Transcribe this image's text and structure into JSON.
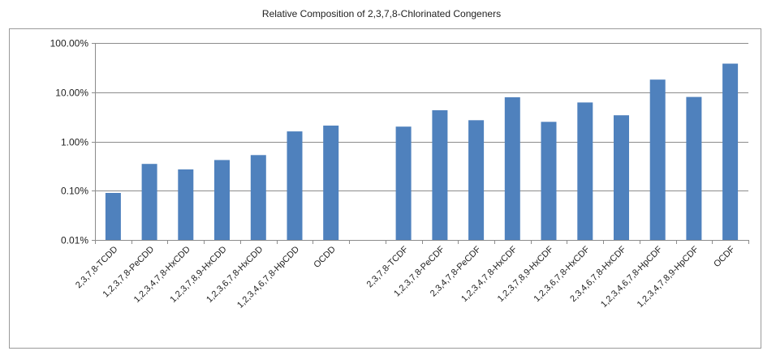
{
  "chart_data": {
    "type": "bar",
    "title": "Relative Composition of 2,3,7,8-Chlorinated Congeners",
    "xlabel": "",
    "ylabel": "",
    "y_scale": "log",
    "ylim": [
      0.01,
      100
    ],
    "y_tick_values": [
      0.01,
      0.1,
      1,
      10,
      100
    ],
    "y_tick_labels": [
      "0.01%",
      "0.10%",
      "1.00%",
      "10.00%",
      "100.00%"
    ],
    "categories": [
      "2,3,7,8-TCDD",
      "1,2,3,7,8-PeCDD",
      "1,2,3,4,7,8-HxCDD",
      "1,2,3,7,8,9-HxCDD",
      "1,2,3,6,7,8-HxCDD",
      "1,2,3,4,6,7,8-HpCDD",
      "OCDD",
      "",
      "2,3,7,8-TCDF",
      "1,2,3,7,8-PeCDF",
      "2,3,4,7,8-PeCDF",
      "1,2,3,4,7,8-HxCDF",
      "1,2,3,7,8,9-HxCDF",
      "1,2,3,6,7,8-HxCDF",
      "2,3,4,6,7,8-HxCDF",
      "1,2,3,4,6,7,8-HpCDF",
      "1,2,3,4,7,8,9-HpCDF",
      "OCDF"
    ],
    "values": [
      0.09,
      0.35,
      0.27,
      0.42,
      0.53,
      1.6,
      2.1,
      null,
      2.0,
      4.3,
      2.7,
      7.9,
      2.5,
      6.2,
      3.4,
      18,
      8.0,
      38
    ],
    "bar_color": "#4f81bd",
    "grid": true,
    "legend": "none"
  }
}
